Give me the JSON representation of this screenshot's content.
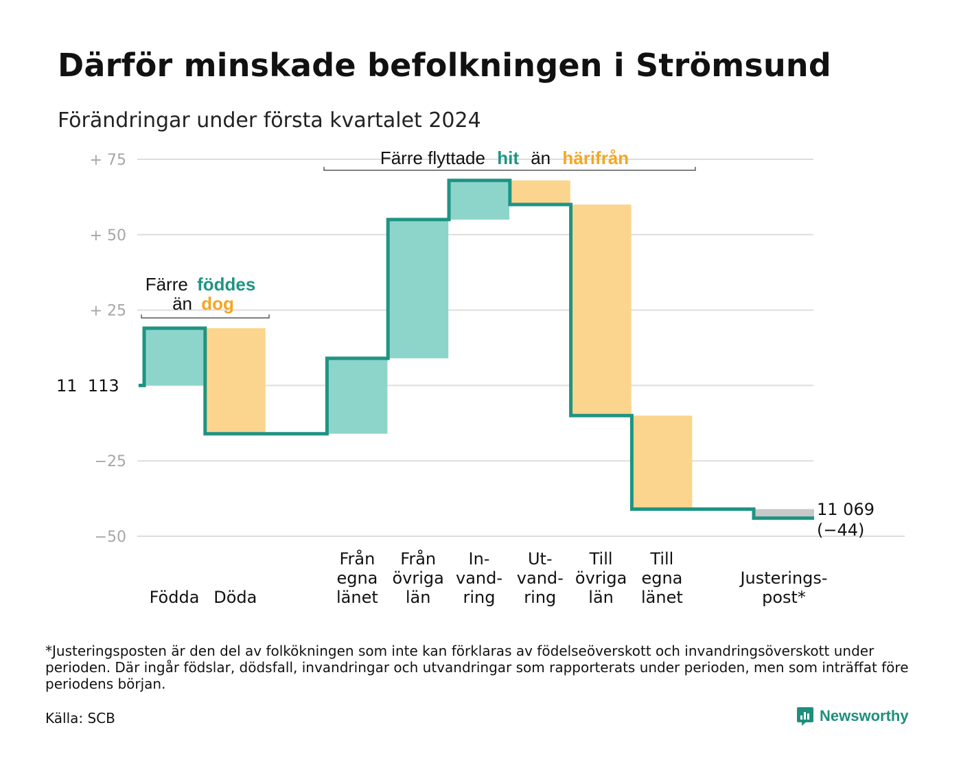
{
  "header": {
    "title": "Därför minskade befolkningen i Strömsund",
    "subtitle": "Förändringar under första kvartalet 2024"
  },
  "footer": {
    "footnote": "*Justeringsposten är den del av folkökningen som inte kan förklaras av födelseöverskott och invandringsöverskott under perioden. Där ingår födslar, dödsfall, invandringar och utvandringar som rapporterats under perioden, men som inträffat före periodens början.",
    "source": "Källa: SCB",
    "brand": "Newsworthy"
  },
  "colors": {
    "increase": "#8dd5cb",
    "decrease": "#fbd58d",
    "adjustment": "#c8c8c8",
    "line": "#1f9483",
    "hit_text": "#1f9483",
    "harifran_text": "#f5a623",
    "grid": "#dddddd",
    "tick_text": "#a6a6a6"
  },
  "chart_data": {
    "type": "waterfall",
    "start_label": "11  113",
    "end_label_value": "11 069",
    "end_label_change": "(−44)",
    "y_ticks": [
      {
        "value": 75,
        "label": "+  75"
      },
      {
        "value": 50,
        "label": "+  50"
      },
      {
        "value": 25,
        "label": "+  25"
      },
      {
        "value": 0,
        "label": ""
      },
      {
        "value": -25,
        "label": "−25"
      },
      {
        "value": -50,
        "label": "−50"
      }
    ],
    "ylim": [
      -50,
      75
    ],
    "grid": true,
    "steps": [
      {
        "label": [
          "Födda"
        ],
        "value": 19,
        "kind": "increase"
      },
      {
        "label": [
          "Döda"
        ],
        "value": -35,
        "kind": "decrease"
      },
      {
        "label": [
          ""
        ],
        "value": 0,
        "kind": "spacer"
      },
      {
        "label": [
          "Från",
          "egna",
          "länet"
        ],
        "value": 25,
        "kind": "increase"
      },
      {
        "label": [
          "Från",
          "övriga",
          "län"
        ],
        "value": 46,
        "kind": "increase"
      },
      {
        "label": [
          "In-",
          "vand-",
          "ring"
        ],
        "value": 13,
        "kind": "increase"
      },
      {
        "label": [
          "Ut-",
          "vand-",
          "ring"
        ],
        "value": -8,
        "kind": "decrease"
      },
      {
        "label": [
          "Till",
          "övriga",
          "län"
        ],
        "value": -70,
        "kind": "decrease"
      },
      {
        "label": [
          "Till",
          "egna",
          "länet"
        ],
        "value": -31,
        "kind": "decrease"
      },
      {
        "label": [
          ""
        ],
        "value": 0,
        "kind": "spacer"
      },
      {
        "label": [
          "Justerings-",
          "post*"
        ],
        "value": -3,
        "kind": "adjustment"
      }
    ],
    "annotations": {
      "births": {
        "line1_plain": "Färre",
        "line1_highlight": "föddes",
        "line2_plain": "än",
        "line2_highlight": "dog"
      },
      "migration": {
        "plain1": "Färre flyttade",
        "highlight1": "hit",
        "plain2": "än",
        "highlight2": "härifrån"
      }
    }
  }
}
